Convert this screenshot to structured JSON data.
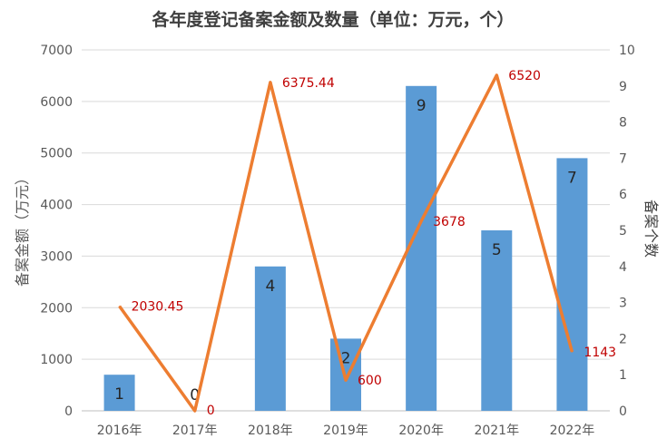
{
  "chart_data": {
    "type": "bar+line",
    "title": "各年度登记备案金额及数量（单位：万元，个）",
    "ylabel": "备案金额（万元）",
    "y2label": "备案个数",
    "ylim": [
      0,
      7000
    ],
    "y2lim": [
      0,
      10
    ],
    "yticks": [
      "0",
      "1000",
      "2000",
      "3000",
      "4000",
      "5000",
      "6000",
      "7000"
    ],
    "y2ticks": [
      "0",
      "1",
      "2",
      "3",
      "4",
      "5",
      "6",
      "7",
      "8",
      "9",
      "10"
    ],
    "categories": [
      "2016年",
      "2017年",
      "2018年",
      "2019年",
      "2020年",
      "2021年",
      "2022年"
    ],
    "bar_values": [
      700,
      0,
      2800,
      1400,
      6300,
      3500,
      4900
    ],
    "bar_labels": [
      "1",
      "0",
      "4",
      "2",
      "9",
      "5",
      "7"
    ],
    "line_values": [
      2.9,
      0.0,
      9.1,
      0.85,
      5.25,
      9.3,
      1.63
    ],
    "line_labels": [
      "2030.45",
      "0",
      "6375.44",
      "600",
      "3678",
      "6520",
      "1143"
    ],
    "bar_color": "#5B9BD5",
    "line_color": "#ED7D31",
    "line_label_color": "#C00000",
    "grid": true
  }
}
